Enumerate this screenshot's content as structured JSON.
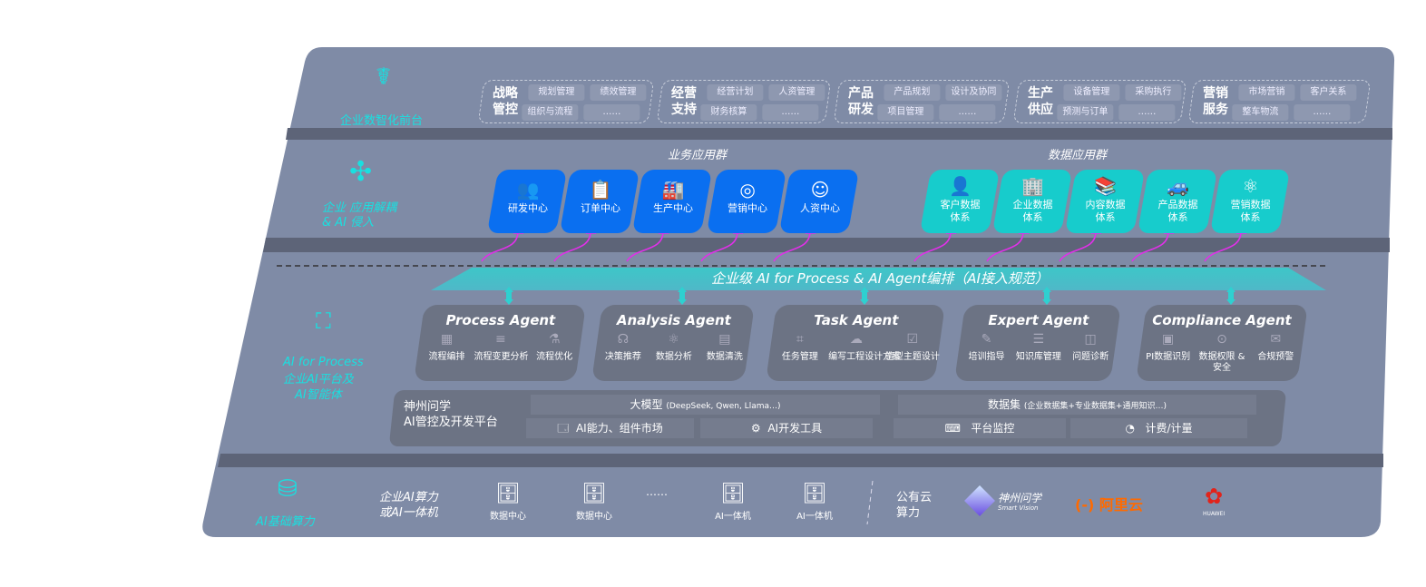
{
  "front": {
    "label": "企业数智化前台",
    "icon": "brain-head-icon",
    "groups": [
      {
        "title": "战略\n管控",
        "items": [
          "规划管理",
          "绩效管理",
          "组织与流程",
          "……"
        ]
      },
      {
        "title": "经营\n支持",
        "items": [
          "经营计划",
          "人资管理",
          "财务核算",
          "……"
        ]
      },
      {
        "title": "产品\n研发",
        "items": [
          "产品规划",
          "设计及协同",
          "项目管理",
          "……"
        ]
      },
      {
        "title": "生产\n供应",
        "items": [
          "设备管理",
          "采购执行",
          "预测与订单",
          "……"
        ]
      },
      {
        "title": "营销\n服务",
        "items": [
          "市场营销",
          "客户关系",
          "整车物流",
          "……"
        ]
      }
    ]
  },
  "apps": {
    "label": "企业 应用解耦\n& AI 侵入",
    "business_title": "业务应用群",
    "business": [
      {
        "label": "研发中心",
        "icon": "users-icon"
      },
      {
        "label": "订单中心",
        "icon": "clipboard-icon"
      },
      {
        "label": "生产中心",
        "icon": "factory-icon"
      },
      {
        "label": "营销中心",
        "icon": "target-icon"
      },
      {
        "label": "人资中心",
        "icon": "person-icon"
      }
    ],
    "data_title": "数据应用群",
    "data": [
      {
        "label": "客户数据\n体系",
        "icon": "user-icon"
      },
      {
        "label": "企业数据\n体系",
        "icon": "building-icon"
      },
      {
        "label": "内容数据\n体系",
        "icon": "books-icon"
      },
      {
        "label": "产品数据\n体系",
        "icon": "car-icon"
      },
      {
        "label": "营销数据\n体系",
        "icon": "atom-icon"
      }
    ]
  },
  "banner": "企业级 AI for Process & AI Agent编排（AI接入规范）",
  "ai": {
    "label_en": "AI for Process",
    "label_cn": "企业AI平台及\nAI智能体",
    "agents": [
      {
        "title": "Process Agent",
        "features": [
          "流程编排",
          "流程变更分析",
          "流程优化"
        ]
      },
      {
        "title": "Analysis Agent",
        "features": [
          "决策推荐",
          "数据分析",
          "数据清洗"
        ]
      },
      {
        "title": "Task Agent",
        "features": [
          "任务管理",
          "编写工程设计方案",
          "造型主题设计"
        ]
      },
      {
        "title": "Expert Agent",
        "features": [
          "培训指导",
          "知识库管理",
          "问题诊断"
        ]
      },
      {
        "title": "Compliance Agent",
        "features": [
          "PI数据识别",
          "数据权限 &\n安全",
          "合规预警"
        ]
      }
    ],
    "platform": {
      "title": "神州问学\nAI管控及开发平台",
      "model": "大模型",
      "model_note": "(DeepSeek, Qwen, Llama…)",
      "market": "AI能力、组件市场",
      "devtools": "AI开发工具",
      "dataset": "数据集",
      "dataset_note": "(企业数据集+专业数据集+通用知识…)",
      "monitor": "平台监控",
      "billing": "计费/计量"
    }
  },
  "infra": {
    "label": "AI基础算力",
    "enterprise": "企业AI算力\n或AI一体机",
    "servers": [
      "数据中心",
      "数据中心",
      "……",
      "AI一体机",
      "AI一体机"
    ],
    "public": "公有云\n算力",
    "vendors": {
      "smartvision_cn": "神州问学",
      "smartvision_en": "Smart Vision",
      "aliyun": "阿里云",
      "huawei": "HUAWEI"
    }
  },
  "colors": {
    "slab": "#7f8ba6",
    "band": "#5d6478",
    "cyan": "#19e0e0",
    "blue": "#0a6ff0",
    "teal": "#17cccc",
    "magenta": "#e030e8",
    "aliyun": "#ff6a00",
    "huawei": "#e2231a"
  }
}
